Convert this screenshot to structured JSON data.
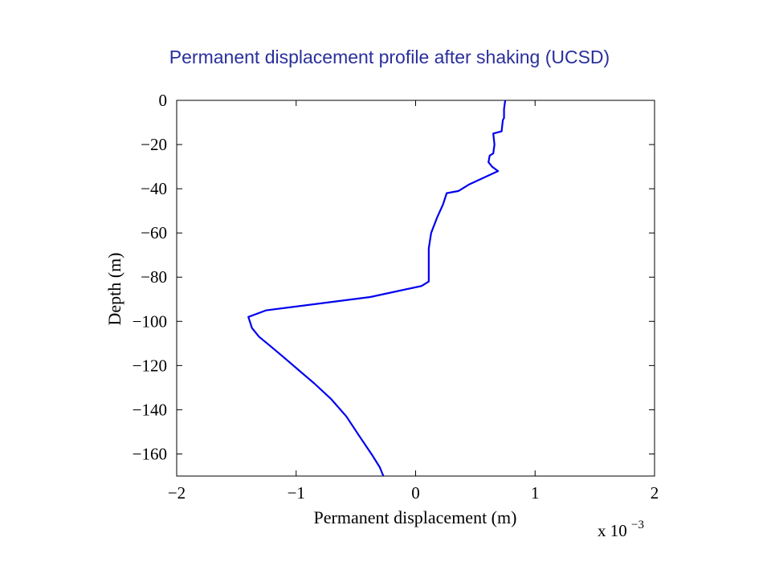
{
  "slide": {
    "title": "Permanent displacement profile after shaking (UCSD)"
  },
  "chart_data": {
    "type": "line",
    "title": "Permanent displacement profile after shaking (UCSD)",
    "xlabel": "Permanent displacement (m)",
    "ylabel": "Depth (m)",
    "x_scale_label": "x 10",
    "x_scale_exponent": "−3",
    "xlim": [
      -2,
      2
    ],
    "ylim": [
      -170,
      0
    ],
    "xticks": [
      -2,
      -1,
      0,
      1,
      2
    ],
    "xtick_labels": [
      "−2",
      "−1",
      "0",
      "1",
      "2"
    ],
    "yticks": [
      0,
      -20,
      -40,
      -60,
      -80,
      -100,
      -120,
      -140,
      -160
    ],
    "ytick_labels": [
      "0",
      "−20",
      "−40",
      "−60",
      "−80",
      "−100",
      "−120",
      "−140",
      "−160"
    ],
    "grid": false,
    "legend": "none",
    "line_color": "#0000ee",
    "series": [
      {
        "x_unit_multiplier": 0.001,
        "points": [
          [
            0.75,
            0
          ],
          [
            0.74,
            -4
          ],
          [
            0.74,
            -8
          ],
          [
            0.73,
            -9
          ],
          [
            0.72,
            -14
          ],
          [
            0.65,
            -15
          ],
          [
            0.66,
            -20
          ],
          [
            0.65,
            -24
          ],
          [
            0.62,
            -25
          ],
          [
            0.61,
            -28
          ],
          [
            0.64,
            -30
          ],
          [
            0.69,
            -32
          ],
          [
            0.45,
            -38
          ],
          [
            0.36,
            -41
          ],
          [
            0.26,
            -42
          ],
          [
            0.23,
            -47
          ],
          [
            0.18,
            -53
          ],
          [
            0.13,
            -60
          ],
          [
            0.11,
            -67
          ],
          [
            0.11,
            -75
          ],
          [
            0.11,
            -82
          ],
          [
            0.05,
            -84
          ],
          [
            -0.38,
            -89
          ],
          [
            -1.25,
            -95
          ],
          [
            -1.4,
            -98
          ],
          [
            -1.37,
            -103
          ],
          [
            -1.31,
            -107
          ],
          [
            -1.22,
            -111
          ],
          [
            -1.11,
            -116
          ],
          [
            -0.98,
            -122
          ],
          [
            -0.85,
            -128
          ],
          [
            -0.71,
            -135
          ],
          [
            -0.58,
            -143
          ],
          [
            -0.47,
            -152
          ],
          [
            -0.37,
            -160
          ],
          [
            -0.3,
            -166
          ],
          [
            -0.27,
            -170
          ]
        ]
      }
    ]
  }
}
